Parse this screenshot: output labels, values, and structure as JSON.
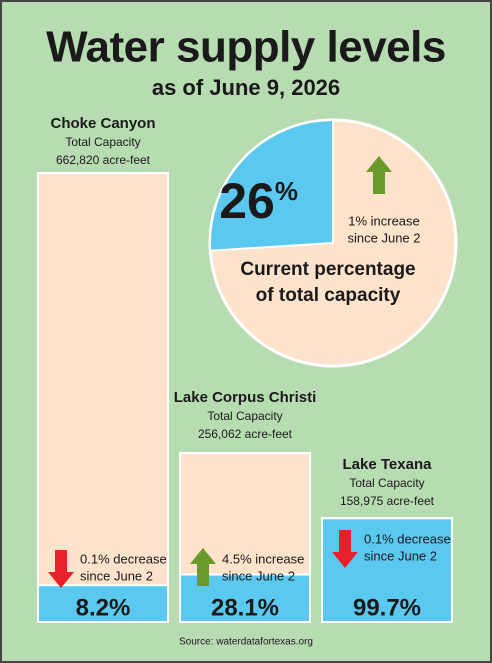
{
  "header": {
    "title": "Water supply levels",
    "subtitle": "as of June 9, 2026"
  },
  "pie": {
    "value": 26,
    "unit": "%",
    "trend": "up",
    "change": [
      "1% increase",
      "since June 2"
    ],
    "caption": [
      "Current percentage",
      "of total capacity"
    ],
    "colors": {
      "fill": "#5bc8f0",
      "rest": "#fde3cc"
    }
  },
  "reservoirs": [
    {
      "name": "Choke Canyon",
      "capacity_label": "Total Capacity",
      "capacity": "662,820 acre-feet",
      "percent": 8.2,
      "percent_label": "8.2%",
      "trend": "down",
      "change": [
        "0.1% decrease",
        "since June 2"
      ]
    },
    {
      "name": "Lake Corpus Christi",
      "capacity_label": "Total Capacity",
      "capacity": "256,062 acre-feet",
      "percent": 28.1,
      "percent_label": "28.1%",
      "trend": "up",
      "change": [
        "4.5% increase",
        "since June 2"
      ]
    },
    {
      "name": "Lake Texana",
      "capacity_label": "Total Capacity",
      "capacity": "158,975 acre-feet",
      "percent": 99.7,
      "percent_label": "99.7%",
      "trend": "down",
      "change": [
        "0.1% decrease",
        "since June 2"
      ]
    }
  ],
  "source": "Source: waterdatafortexas.org"
}
